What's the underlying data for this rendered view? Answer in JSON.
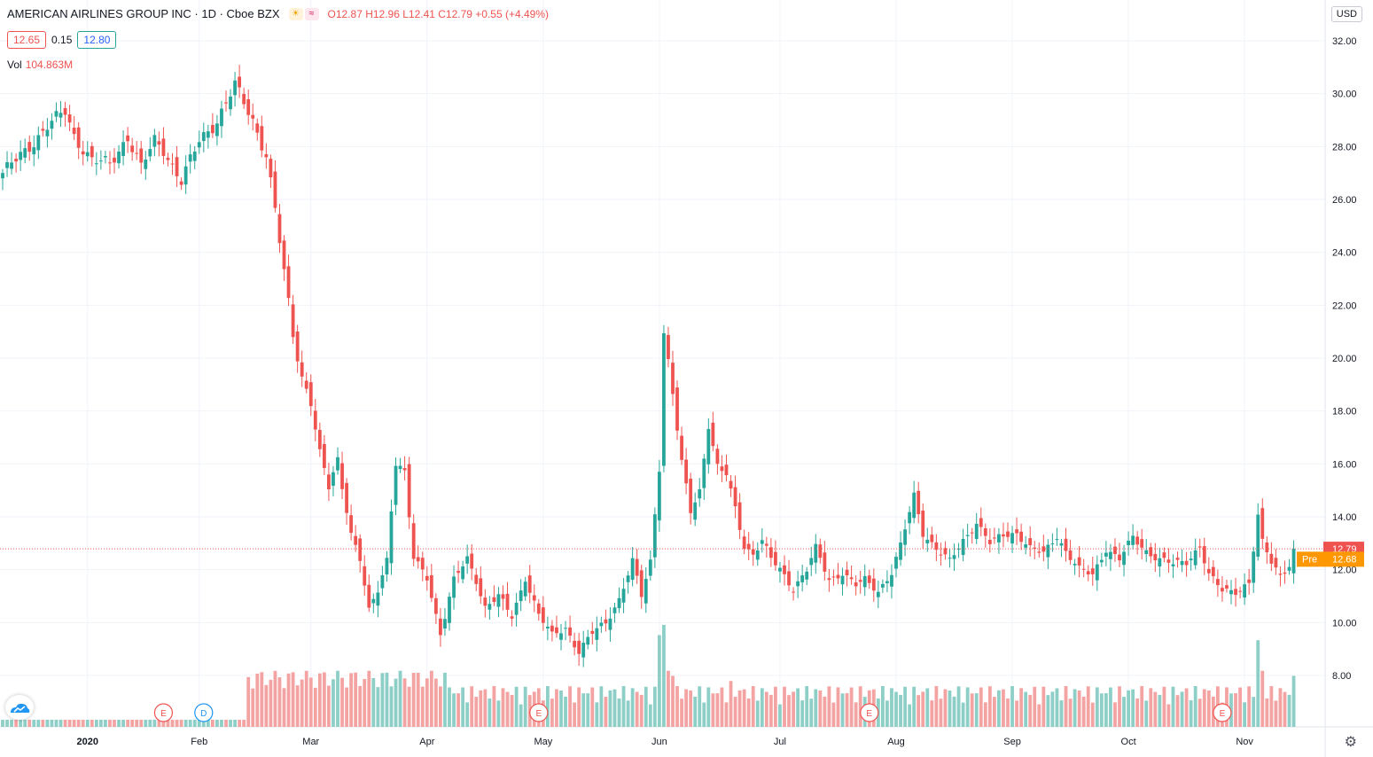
{
  "header": {
    "symbol": "AMERICAN AIRLINES GROUP INC · 1D · Cboe BZX",
    "ohlc": "O12.87 H12.96 L12.41 C12.79 +0.55 (+4.49%)",
    "icon_sun": "sun-icon",
    "icon_wave": "approx-icon"
  },
  "quote": {
    "bid": "12.65",
    "spread": "0.15",
    "ask": "12.80"
  },
  "volume": {
    "label": "Vol",
    "value": "104.863M"
  },
  "currency": "USD",
  "price_labels": {
    "last": "12.79",
    "pre_label": "Pre",
    "pre": "12.68"
  },
  "events": [
    {
      "label": "E",
      "color": "#ef5350",
      "date_index": 36
    },
    {
      "label": "D",
      "color": "#2196f3",
      "date_index": 45
    },
    {
      "label": "E",
      "color": "#ef5350",
      "date_index": 120
    },
    {
      "label": "E",
      "color": "#ef5350",
      "date_index": 194
    },
    {
      "label": "E",
      "color": "#ef5350",
      "date_index": 273
    }
  ],
  "colors": {
    "up": "#26a69a",
    "down": "#ef5350",
    "up_vol": "#8dcfc7",
    "down_vol": "#f4a3a3",
    "grid": "#f0f3fa"
  },
  "chart_data": {
    "type": "candlestick",
    "title": "AMERICAN AIRLINES GROUP INC · 1D · Cboe BZX",
    "y_ticks": [
      "32.00",
      "30.00",
      "28.00",
      "26.00",
      "24.00",
      "22.00",
      "20.00",
      "18.00",
      "16.00",
      "14.00",
      "12.00",
      "10.00",
      "8.00"
    ],
    "x_ticks": [
      {
        "label": "2020",
        "bold": true,
        "index": 19
      },
      {
        "label": "Feb",
        "index": 44
      },
      {
        "label": "Mar",
        "index": 69
      },
      {
        "label": "Apr",
        "index": 95
      },
      {
        "label": "May",
        "index": 121
      },
      {
        "label": "Jun",
        "index": 147
      },
      {
        "label": "Jul",
        "index": 174
      },
      {
        "label": "Aug",
        "index": 200
      },
      {
        "label": "Sep",
        "index": 226
      },
      {
        "label": "Oct",
        "index": 252
      },
      {
        "label": "Nov",
        "index": 278
      }
    ],
    "ylim": [
      6.2,
      32.8
    ],
    "last_close": 12.79,
    "anchors": [
      [
        0,
        27.0
      ],
      [
        5,
        27.8
      ],
      [
        10,
        28.8
      ],
      [
        14,
        29.3
      ],
      [
        16,
        28.4
      ],
      [
        20,
        27.5
      ],
      [
        24,
        27.3
      ],
      [
        28,
        28.4
      ],
      [
        31,
        27.2
      ],
      [
        34,
        28.2
      ],
      [
        36,
        27.9
      ],
      [
        40,
        26.7
      ],
      [
        44,
        28.2
      ],
      [
        48,
        29.0
      ],
      [
        52,
        30.3
      ],
      [
        56,
        29.0
      ],
      [
        59,
        27.7
      ],
      [
        61,
        25.6
      ],
      [
        63,
        23.2
      ],
      [
        65,
        20.9
      ],
      [
        67,
        19.3
      ],
      [
        69,
        18.4
      ],
      [
        71,
        16.3
      ],
      [
        73,
        15.1
      ],
      [
        75,
        16.1
      ],
      [
        78,
        13.4
      ],
      [
        80,
        12.4
      ],
      [
        82,
        10.4
      ],
      [
        84,
        11.2
      ],
      [
        86,
        12.4
      ],
      [
        88,
        16.2
      ],
      [
        90,
        15.6
      ],
      [
        92,
        12.4
      ],
      [
        95,
        11.7
      ],
      [
        98,
        9.6
      ],
      [
        101,
        11.6
      ],
      [
        104,
        12.4
      ],
      [
        106,
        11.6
      ],
      [
        108,
        10.6
      ],
      [
        111,
        11.0
      ],
      [
        114,
        10.2
      ],
      [
        117,
        11.7
      ],
      [
        120,
        10.3
      ],
      [
        123,
        9.5
      ],
      [
        126,
        9.8
      ],
      [
        129,
        8.9
      ],
      [
        132,
        9.6
      ],
      [
        135,
        10.0
      ],
      [
        138,
        10.9
      ],
      [
        141,
        12.3
      ],
      [
        143,
        11.0
      ],
      [
        145,
        12.3
      ],
      [
        147,
        16.0
      ],
      [
        148,
        21.0
      ],
      [
        150,
        18.7
      ],
      [
        152,
        15.9
      ],
      [
        154,
        14.2
      ],
      [
        156,
        15.0
      ],
      [
        158,
        17.6
      ],
      [
        160,
        15.8
      ],
      [
        162,
        15.6
      ],
      [
        164,
        14.3
      ],
      [
        166,
        12.9
      ],
      [
        168,
        12.6
      ],
      [
        170,
        13.1
      ],
      [
        172,
        12.4
      ],
      [
        174,
        12.0
      ],
      [
        177,
        11.3
      ],
      [
        180,
        12.0
      ],
      [
        182,
        12.8
      ],
      [
        185,
        11.6
      ],
      [
        188,
        11.9
      ],
      [
        191,
        11.4
      ],
      [
        193,
        11.6
      ],
      [
        196,
        11.2
      ],
      [
        199,
        11.9
      ],
      [
        201,
        12.9
      ],
      [
        204,
        14.8
      ],
      [
        206,
        13.4
      ],
      [
        209,
        12.8
      ],
      [
        212,
        12.3
      ],
      [
        215,
        13.1
      ],
      [
        218,
        13.8
      ],
      [
        221,
        13.0
      ],
      [
        224,
        13.3
      ],
      [
        227,
        13.4
      ],
      [
        230,
        12.8
      ],
      [
        233,
        12.6
      ],
      [
        236,
        13.3
      ],
      [
        238,
        12.7
      ],
      [
        241,
        12.0
      ],
      [
        244,
        11.8
      ],
      [
        247,
        12.8
      ],
      [
        250,
        12.4
      ],
      [
        253,
        13.2
      ],
      [
        256,
        12.7
      ],
      [
        259,
        12.4
      ],
      [
        262,
        12.2
      ],
      [
        265,
        12.3
      ],
      [
        268,
        12.9
      ],
      [
        270,
        11.8
      ],
      [
        273,
        11.2
      ],
      [
        276,
        11.2
      ],
      [
        279,
        11.5
      ],
      [
        281,
        14.0
      ],
      [
        282,
        13.0
      ],
      [
        284,
        12.3
      ],
      [
        286,
        11.8
      ],
      [
        288,
        12.2
      ],
      [
        289,
        12.79
      ]
    ],
    "volume_spikes": [
      [
        147,
        0.9
      ],
      [
        148,
        1.0
      ],
      [
        149,
        0.55
      ],
      [
        150,
        0.5
      ],
      [
        163,
        0.45
      ],
      [
        281,
        0.85
      ],
      [
        282,
        0.55
      ],
      [
        289,
        0.5
      ]
    ],
    "series": [
      {
        "name": "Vol",
        "note": "volume histogram"
      }
    ]
  }
}
